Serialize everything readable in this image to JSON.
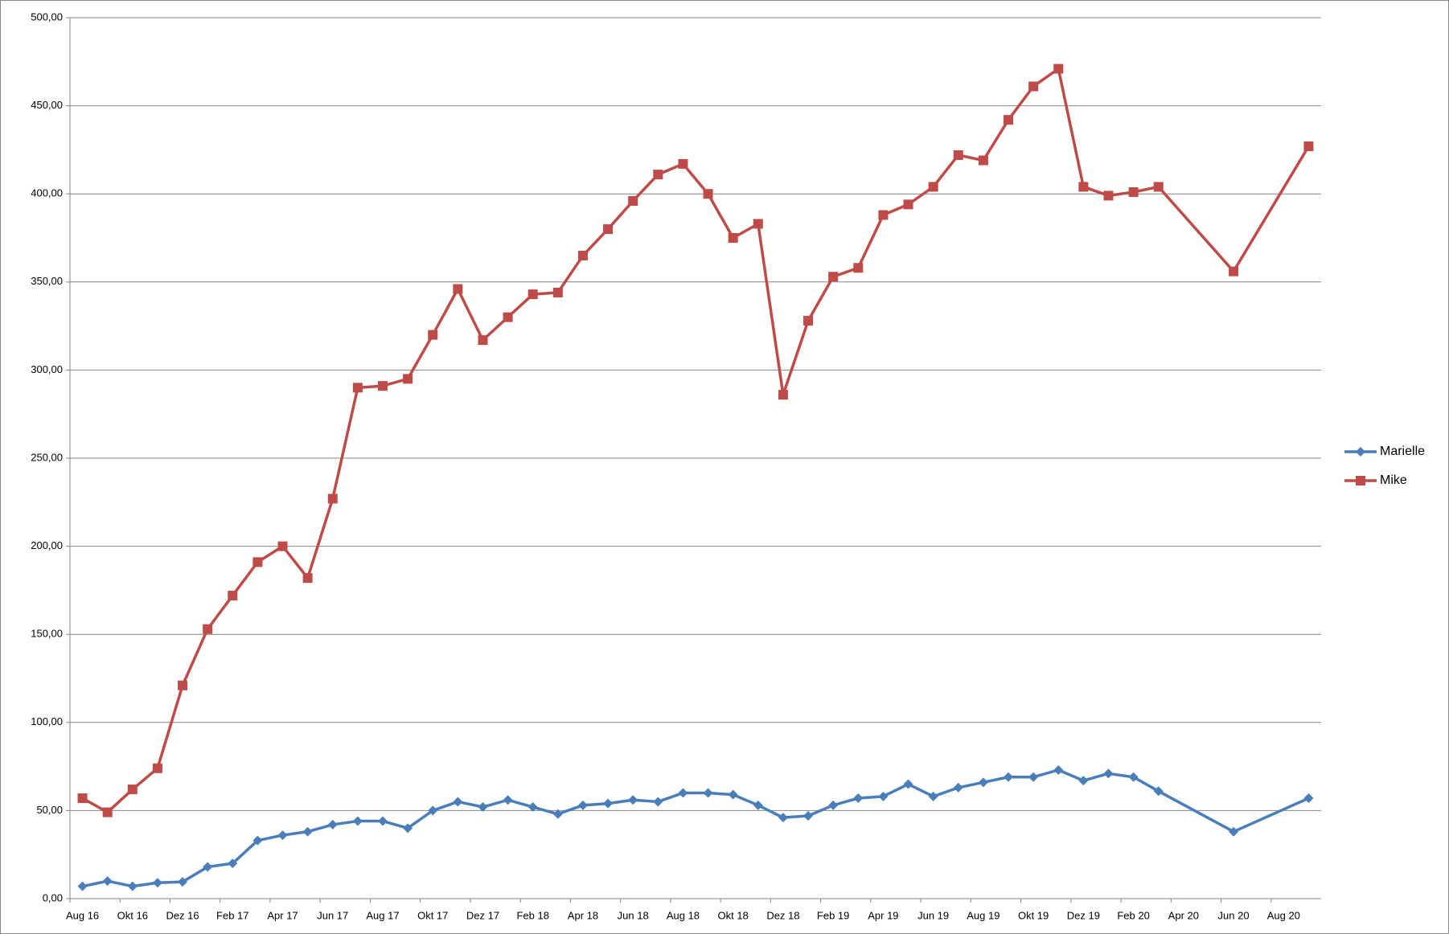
{
  "chart_data": {
    "type": "line",
    "x": [
      "2016-08",
      "2016-09",
      "2016-10",
      "2016-11",
      "2016-12",
      "2017-01",
      "2017-02",
      "2017-03",
      "2017-04",
      "2017-05",
      "2017-06",
      "2017-07",
      "2017-08",
      "2017-09",
      "2017-10",
      "2017-11",
      "2017-12",
      "2018-01",
      "2018-02",
      "2018-03",
      "2018-04",
      "2018-05",
      "2018-06",
      "2018-07",
      "2018-08",
      "2018-09",
      "2018-10",
      "2018-11",
      "2018-12",
      "2019-01",
      "2019-02",
      "2019-03",
      "2019-04",
      "2019-05",
      "2019-06",
      "2019-07",
      "2019-08",
      "2019-09",
      "2019-10",
      "2019-11",
      "2019-12",
      "2020-01",
      "2020-02",
      "2020-03",
      "2020-06",
      "2020-09"
    ],
    "series": [
      {
        "name": "Marielle",
        "color": "#4a7ebb",
        "marker": "diamond",
        "values": [
          7,
          10,
          7,
          9,
          9.5,
          18,
          20,
          33,
          36,
          38,
          42,
          44,
          44,
          40,
          50,
          55,
          52,
          56,
          52,
          48,
          53,
          54,
          56,
          55,
          60,
          60,
          59,
          53,
          46,
          47,
          53,
          57,
          58,
          65,
          58,
          63,
          66,
          69,
          69,
          73,
          67,
          71,
          69,
          61,
          38,
          57
        ]
      },
      {
        "name": "Mike",
        "color": "#be4b48",
        "marker": "square",
        "values": [
          57,
          49,
          62,
          74,
          121,
          153,
          172,
          191,
          200,
          182,
          227,
          290,
          291,
          295,
          320,
          346,
          317,
          330,
          343,
          344,
          365,
          380,
          396,
          411,
          417,
          400,
          375,
          383,
          286,
          328,
          353,
          358,
          388,
          394,
          404,
          422,
          419,
          442,
          461,
          471,
          404,
          399,
          401,
          404,
          356,
          427
        ]
      }
    ],
    "xlim": [
      "2016-08",
      "2020-09"
    ],
    "xticks": [
      {
        "value": "2016-08",
        "label": "Aug 16"
      },
      {
        "value": "2016-10",
        "label": "Okt 16"
      },
      {
        "value": "2016-12",
        "label": "Dez 16"
      },
      {
        "value": "2017-02",
        "label": "Feb 17"
      },
      {
        "value": "2017-04",
        "label": "Apr 17"
      },
      {
        "value": "2017-06",
        "label": "Jun 17"
      },
      {
        "value": "2017-08",
        "label": "Aug 17"
      },
      {
        "value": "2017-10",
        "label": "Okt 17"
      },
      {
        "value": "2017-12",
        "label": "Dez 17"
      },
      {
        "value": "2018-02",
        "label": "Feb 18"
      },
      {
        "value": "2018-04",
        "label": "Apr 18"
      },
      {
        "value": "2018-06",
        "label": "Jun 18"
      },
      {
        "value": "2018-08",
        "label": "Aug 18"
      },
      {
        "value": "2018-10",
        "label": "Okt 18"
      },
      {
        "value": "2018-12",
        "label": "Dez 18"
      },
      {
        "value": "2019-02",
        "label": "Feb 19"
      },
      {
        "value": "2019-04",
        "label": "Apr 19"
      },
      {
        "value": "2019-06",
        "label": "Jun 19"
      },
      {
        "value": "2019-08",
        "label": "Aug 19"
      },
      {
        "value": "2019-10",
        "label": "Okt 19"
      },
      {
        "value": "2019-12",
        "label": "Dez 19"
      },
      {
        "value": "2020-02",
        "label": "Feb 20"
      },
      {
        "value": "2020-04",
        "label": "Apr 20"
      },
      {
        "value": "2020-06",
        "label": "Jun 20"
      },
      {
        "value": "2020-08",
        "label": "Aug 20"
      }
    ],
    "ylim": [
      0,
      500
    ],
    "yticks": [
      {
        "value": 0,
        "label": "0,00"
      },
      {
        "value": 50,
        "label": "50,00"
      },
      {
        "value": 100,
        "label": "100,00"
      },
      {
        "value": 150,
        "label": "150,00"
      },
      {
        "value": 200,
        "label": "200,00"
      },
      {
        "value": 250,
        "label": "250,00"
      },
      {
        "value": 300,
        "label": "300,00"
      },
      {
        "value": 350,
        "label": "350,00"
      },
      {
        "value": 400,
        "label": "400,00"
      },
      {
        "value": 450,
        "label": "450,00"
      },
      {
        "value": 500,
        "label": "500,00"
      }
    ],
    "grid": true,
    "legend": "right"
  }
}
